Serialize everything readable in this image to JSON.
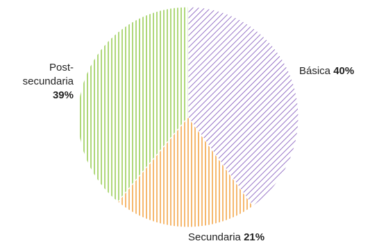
{
  "chart_data": {
    "type": "pie",
    "title": "",
    "slices": [
      {
        "label": "Básica",
        "value": 40,
        "value_label": "40%",
        "color": "#7b4fb8",
        "hatch": "diagonal"
      },
      {
        "label": "Secundaria",
        "value": 21,
        "value_label": "21%",
        "color": "#f29a30",
        "hatch": "vertical"
      },
      {
        "label": "Post-secundaria",
        "label_lines": [
          "Post-",
          "secundaria"
        ],
        "value": 39,
        "value_label": "39%",
        "color": "#8cc63f",
        "hatch": "vertical"
      }
    ],
    "start_angle": "12 o'clock",
    "direction": "clockwise",
    "legend": "none"
  }
}
